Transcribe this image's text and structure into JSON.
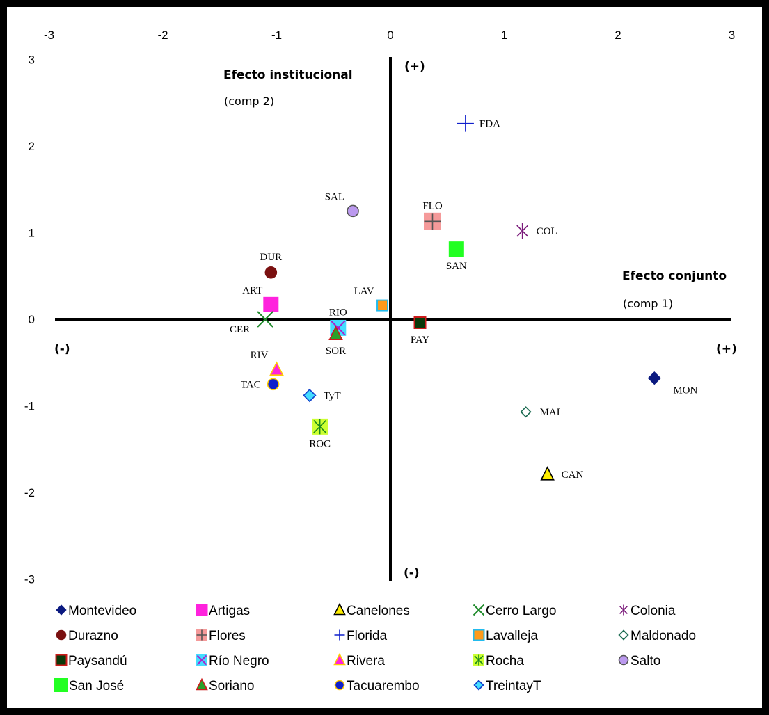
{
  "chart_data": {
    "type": "scatter",
    "title": "",
    "xlim": [
      -3,
      3
    ],
    "ylim": [
      -3,
      3
    ],
    "xticks": [
      "-3",
      "-2",
      "-1",
      "0",
      "1",
      "2",
      "3"
    ],
    "yticks": [
      "3",
      "2",
      "1",
      "0",
      "-1",
      "-2",
      "-3"
    ],
    "axis_texts": {
      "y_title": "Efecto institucional",
      "y_sub": "(comp 2)",
      "x_title": "Efecto conjunto",
      "x_sub": "(comp 1)",
      "y_plus": "(+)",
      "y_minus": "(-)",
      "x_plus": "(+)",
      "x_minus": "(-)"
    },
    "series": [
      {
        "name": "Montevideo",
        "code": "MON",
        "x": 2.32,
        "y": -0.68,
        "marker": "diamond",
        "fill": "#0b1a80",
        "stroke": "#0b1a80",
        "lbl": "br"
      },
      {
        "name": "Artigas",
        "code": "ART",
        "x": -1.05,
        "y": 0.17,
        "marker": "square",
        "fill": "#ff22dd",
        "stroke": "#ff22dd",
        "lbl": "tl"
      },
      {
        "name": "Canelones",
        "code": "CAN",
        "x": 1.38,
        "y": -1.79,
        "marker": "triangle",
        "fill": "#ffee00",
        "stroke": "#000000",
        "lbl": "r"
      },
      {
        "name": "Cerro Largo",
        "code": "CER",
        "x": -1.1,
        "y": 0.0,
        "marker": "x",
        "fill": "#9be39b",
        "stroke": "#1e8a2a",
        "lbl": "bl"
      },
      {
        "name": "Colonia",
        "code": "COL",
        "x": 1.16,
        "y": 1.02,
        "marker": "star",
        "fill": "none",
        "stroke": "#7a1a7a",
        "lbl": "r"
      },
      {
        "name": "Durazno",
        "code": "DUR",
        "x": -1.05,
        "y": 0.54,
        "marker": "circle",
        "fill": "#7a1010",
        "stroke": "#7a1010",
        "lbl": "t"
      },
      {
        "name": "Flores",
        "code": "FLO",
        "x": 0.37,
        "y": 1.13,
        "marker": "squareplus",
        "fill": "#f59a9a",
        "stroke": "#555555",
        "lbl": "t"
      },
      {
        "name": "Florida",
        "code": "FDA",
        "x": 0.66,
        "y": 2.26,
        "marker": "plus",
        "fill": "none",
        "stroke": "#1020cc",
        "lbl": "r"
      },
      {
        "name": "Lavalleja",
        "code": "LAV",
        "x": -0.07,
        "y": 0.16,
        "marker": "square",
        "fill": "#ff9a1a",
        "stroke": "#22bbee",
        "lbl": "tl"
      },
      {
        "name": "Maldonado",
        "code": "MAL",
        "x": 1.19,
        "y": -1.07,
        "marker": "diamond",
        "fill": "#ffffff",
        "stroke": "#1a6a50",
        "lbl": "r"
      },
      {
        "name": "Paysandú",
        "code": "PAY",
        "x": 0.26,
        "y": -0.04,
        "marker": "square",
        "fill": "#0a3a0a",
        "stroke": "#cc1a1a",
        "lbl": "b"
      },
      {
        "name": "Río Negro",
        "code": "RIO",
        "x": -0.46,
        "y": -0.1,
        "marker": "squarex",
        "fill": "#44ddff",
        "stroke": "#aa22cc",
        "lbl": "t"
      },
      {
        "name": "Rivera",
        "code": "RIV",
        "x": -1.0,
        "y": -0.58,
        "marker": "triangle",
        "fill": "#ff22dd",
        "stroke": "#ffcc00",
        "lbl": "tl"
      },
      {
        "name": "Rocha",
        "code": "ROC",
        "x": -0.62,
        "y": -1.24,
        "marker": "squarestar",
        "fill": "#ccff33",
        "stroke": "#1a8a1a",
        "lbl": "b"
      },
      {
        "name": "Salto",
        "code": "SAL",
        "x": -0.33,
        "y": 1.25,
        "marker": "circle",
        "fill": "#bb99ee",
        "stroke": "#555555",
        "lbl": "tl"
      },
      {
        "name": "San José",
        "code": "SAN",
        "x": 0.58,
        "y": 0.81,
        "marker": "square",
        "fill": "#22ff22",
        "stroke": "#22ff22",
        "lbl": "b"
      },
      {
        "name": "Soriano",
        "code": "SOR",
        "x": -0.48,
        "y": -0.17,
        "marker": "triangle",
        "fill": "#2aa02a",
        "stroke": "#cc1a1a",
        "lbl": "b"
      },
      {
        "name": "Tacuarembo",
        "code": "TAC",
        "x": -1.03,
        "y": -0.75,
        "marker": "circle",
        "fill": "#1020cc",
        "stroke": "#ffcc00",
        "lbl": "l"
      },
      {
        "name": "TreintayT",
        "code": "TyT",
        "x": -0.71,
        "y": -0.88,
        "marker": "diamond",
        "fill": "#44ddff",
        "stroke": "#1040cc",
        "lbl": "r"
      }
    ],
    "legend_position": "bottom",
    "grid": false
  }
}
